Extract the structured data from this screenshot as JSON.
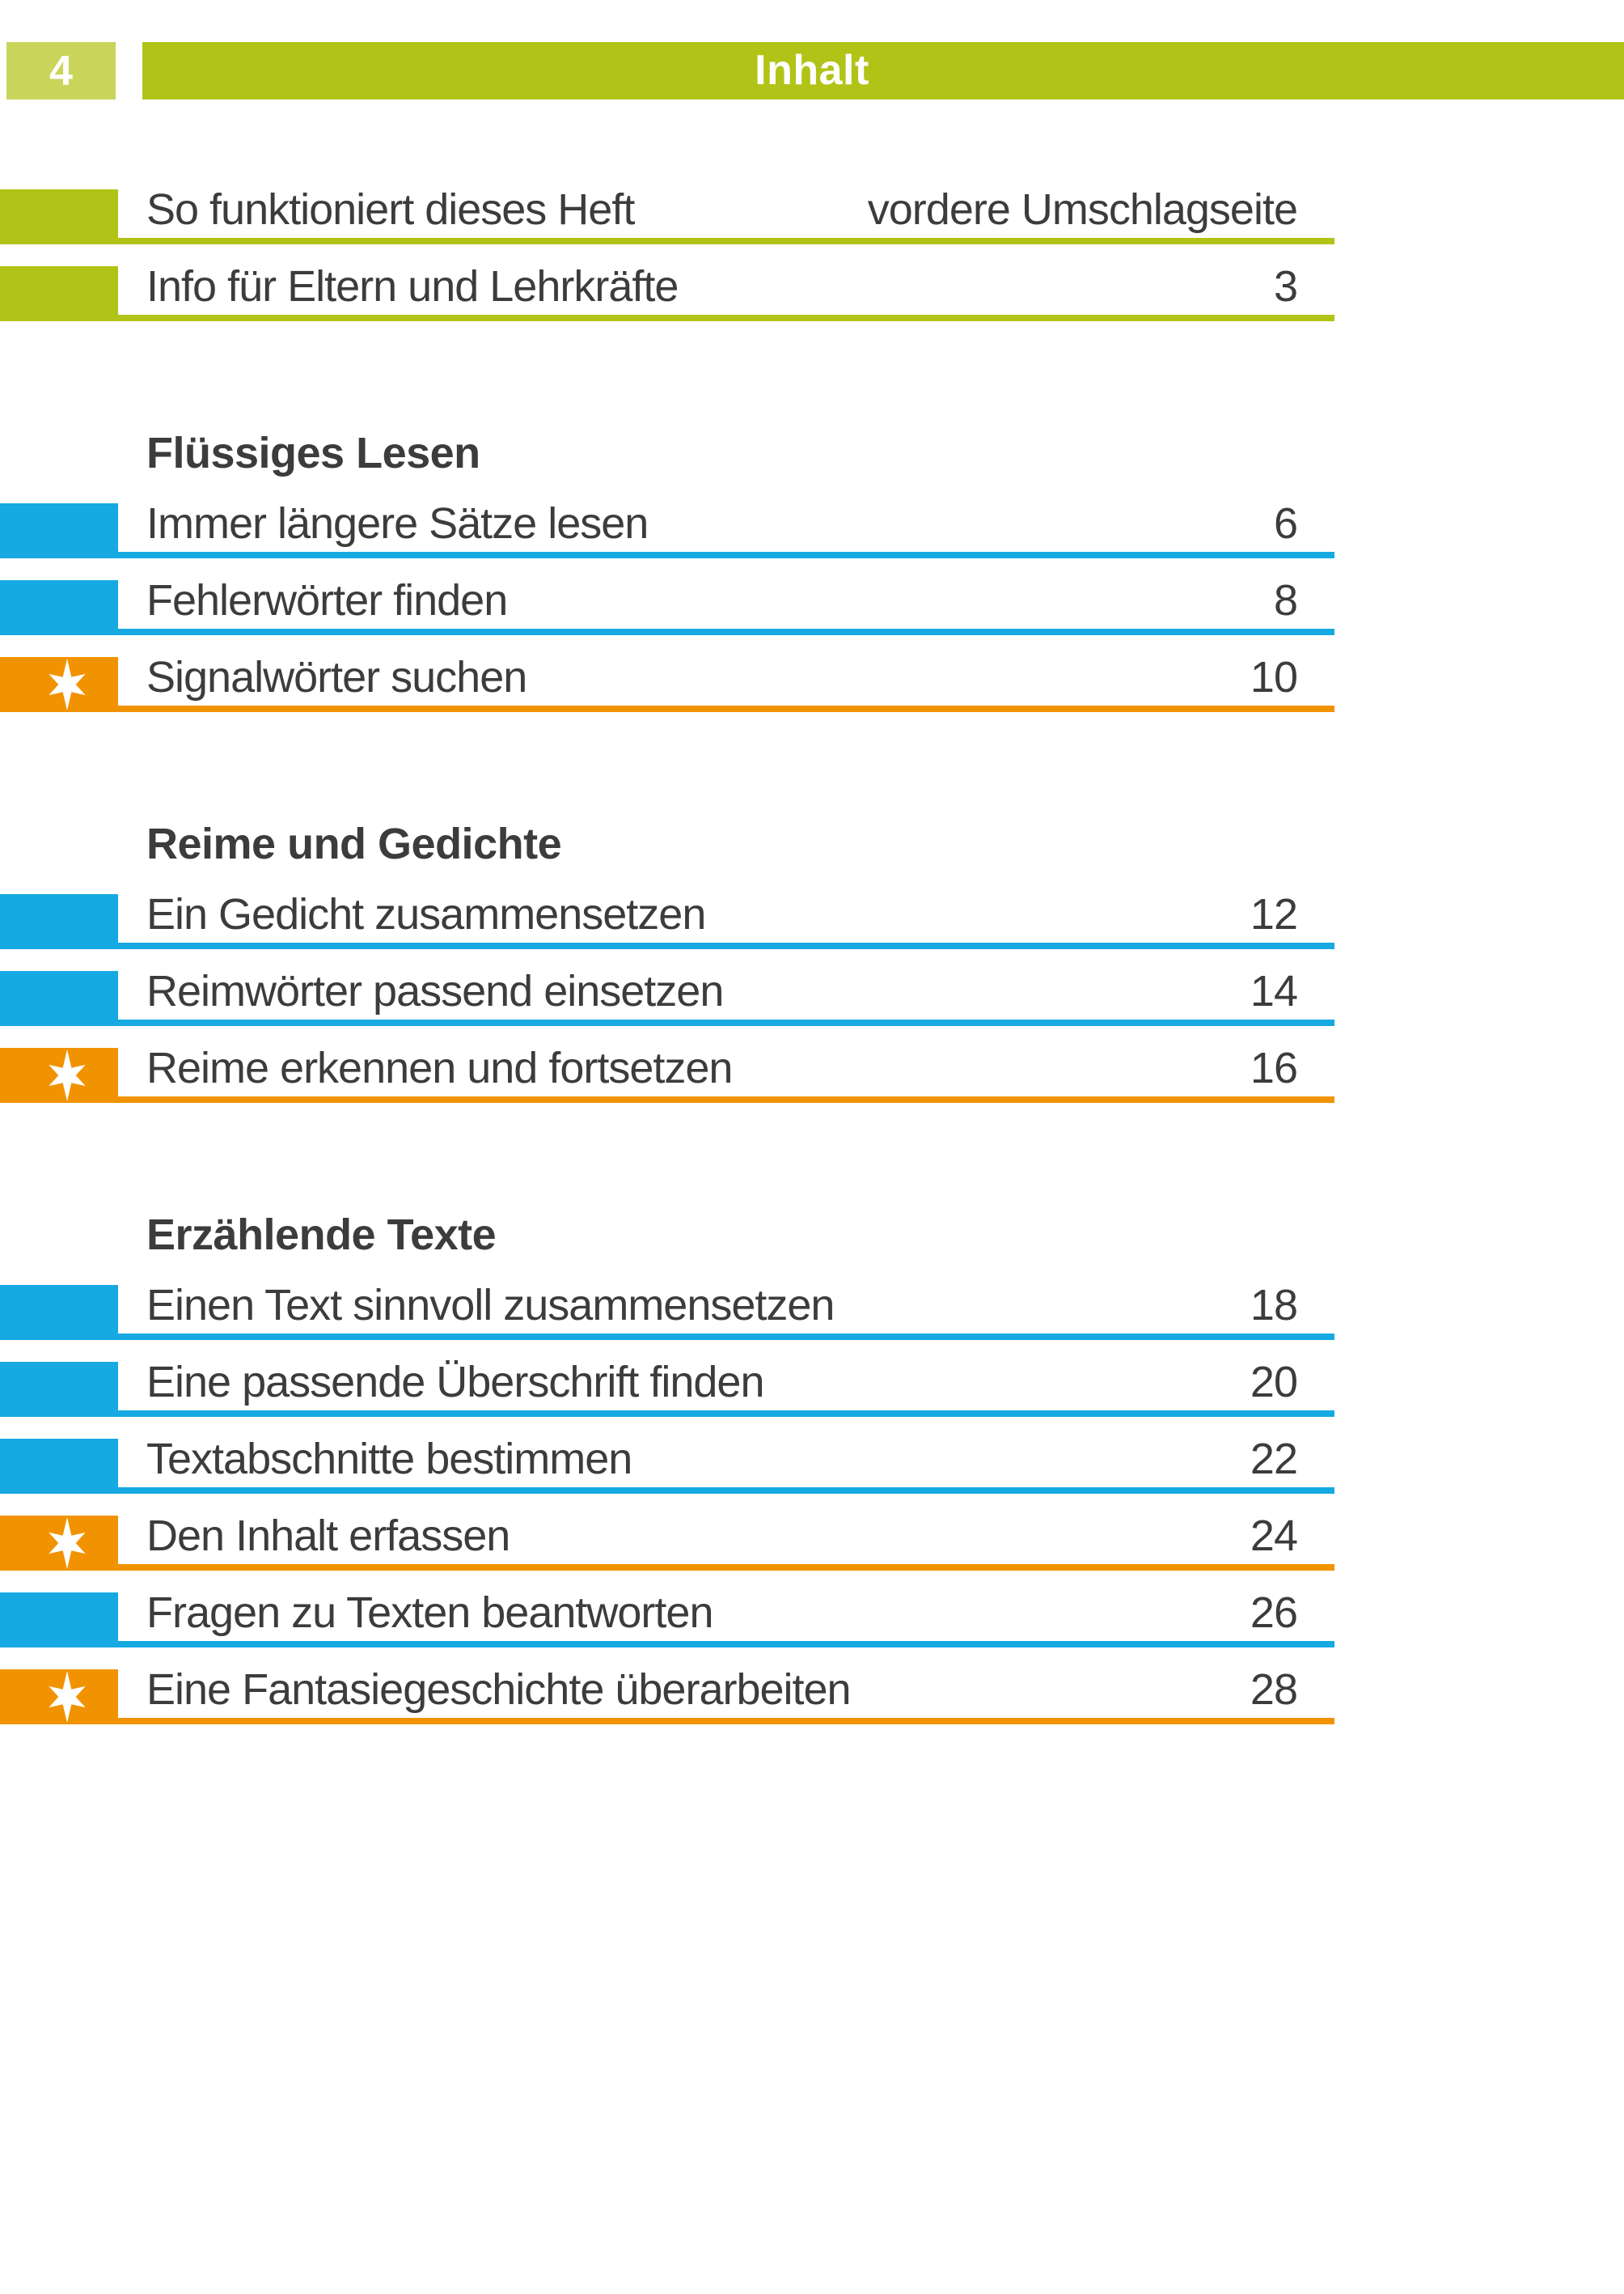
{
  "header": {
    "page_number": "4",
    "title": "Inhalt"
  },
  "colors": {
    "green": "#b2c318",
    "light_green": "#c9d45b",
    "blue": "#16a9e2",
    "orange": "#f19300",
    "text": "#3c3c3b"
  },
  "icons": {
    "star_marker": "six-pointed-star"
  },
  "toc": {
    "sections": [
      {
        "heading": null,
        "rows": [
          {
            "title": "So funktioniert dieses Heft",
            "page": "vordere Umschlagseite",
            "marker": "green"
          },
          {
            "title": "Info für Eltern und Lehrkräfte",
            "page": "3",
            "marker": "green"
          }
        ]
      },
      {
        "heading": "Flüssiges Lesen",
        "rows": [
          {
            "title": "Immer längere Sätze lesen",
            "page": "6",
            "marker": "blue"
          },
          {
            "title": "Fehlerwörter finden",
            "page": "8",
            "marker": "blue"
          },
          {
            "title": "Signalwörter suchen",
            "page": "10",
            "marker": "star"
          }
        ]
      },
      {
        "heading": "Reime und Gedichte",
        "rows": [
          {
            "title": "Ein Gedicht zusammensetzen",
            "page": "12",
            "marker": "blue"
          },
          {
            "title": "Reimwörter passend einsetzen",
            "page": "14",
            "marker": "blue"
          },
          {
            "title": "Reime erkennen und fortsetzen",
            "page": "16",
            "marker": "star"
          }
        ]
      },
      {
        "heading": "Erzählende Texte",
        "rows": [
          {
            "title": "Einen Text sinnvoll zusammensetzen",
            "page": "18",
            "marker": "blue"
          },
          {
            "title": "Eine passende Überschrift finden",
            "page": "20",
            "marker": "blue"
          },
          {
            "title": "Textabschnitte bestimmen",
            "page": "22",
            "marker": "blue"
          },
          {
            "title": "Den Inhalt erfassen",
            "page": "24",
            "marker": "star"
          },
          {
            "title": "Fragen zu Texten beantworten",
            "page": "26",
            "marker": "blue"
          },
          {
            "title": "Eine Fantasiegeschichte überarbeiten",
            "page": "28",
            "marker": "star"
          }
        ]
      }
    ]
  }
}
